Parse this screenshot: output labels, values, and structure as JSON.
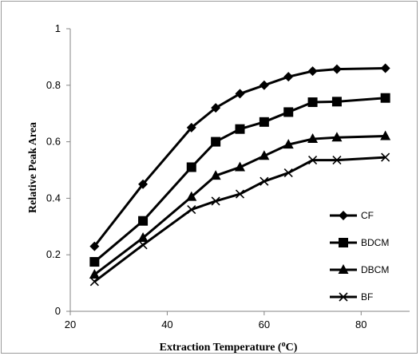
{
  "chart_data": {
    "type": "line",
    "xlabel_main": "Extraction Temperature (",
    "xlabel_sup": "o",
    "xlabel_tail": "C)",
    "ylabel": "Relative Peak Area",
    "xlim": [
      20,
      90
    ],
    "ylim": [
      0,
      1
    ],
    "xticks": [
      20,
      40,
      60,
      80
    ],
    "yticks": [
      0,
      0.2,
      0.4,
      0.6,
      0.8,
      1
    ],
    "ytick_labels": [
      "0",
      "0.2",
      "0.4",
      "0.6",
      "0.8",
      "1"
    ],
    "xtick_labels": [
      "20",
      "40",
      "60",
      "80"
    ],
    "grid": false,
    "legend_position": "bottom-right",
    "x": [
      25,
      35,
      45,
      50,
      55,
      60,
      65,
      70,
      75,
      85
    ],
    "series": [
      {
        "name": "CF",
        "marker": "diamond",
        "values": [
          0.23,
          0.45,
          0.65,
          0.72,
          0.77,
          0.8,
          0.83,
          0.85,
          0.857,
          0.86
        ]
      },
      {
        "name": "BDCM",
        "marker": "square",
        "values": [
          0.175,
          0.32,
          0.51,
          0.6,
          0.645,
          0.67,
          0.705,
          0.74,
          0.742,
          0.755
        ]
      },
      {
        "name": "DBCM",
        "marker": "triangle",
        "values": [
          0.13,
          0.26,
          0.405,
          0.48,
          0.51,
          0.55,
          0.59,
          0.61,
          0.615,
          0.62
        ]
      },
      {
        "name": "BF",
        "marker": "x",
        "values": [
          0.105,
          0.235,
          0.36,
          0.39,
          0.415,
          0.46,
          0.49,
          0.535,
          0.535,
          0.545
        ]
      }
    ],
    "colors": {
      "line": "#000000",
      "axis": "#858585"
    }
  }
}
